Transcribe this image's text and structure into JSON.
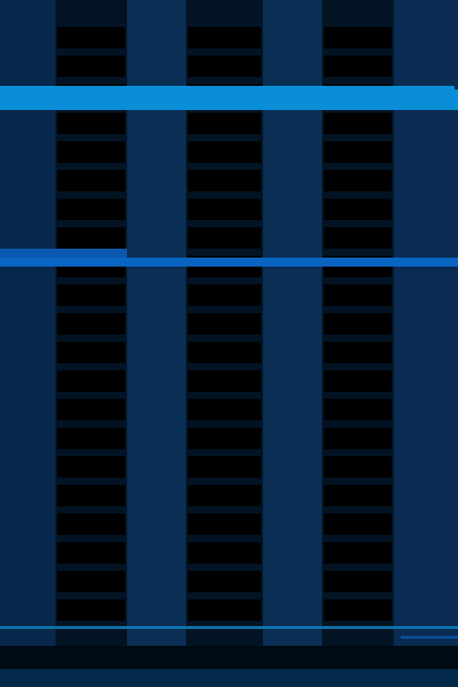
{
  "screen": {
    "theme": "dark-blue",
    "colors": {
      "background": "#001a33",
      "column": "#0b2e55",
      "gap": "#021424",
      "cell": "#000000",
      "bar_primary": "#0a8ed8",
      "bar_secondary": "#0a64c2",
      "line_bottom": "#0c77b3"
    }
  }
}
